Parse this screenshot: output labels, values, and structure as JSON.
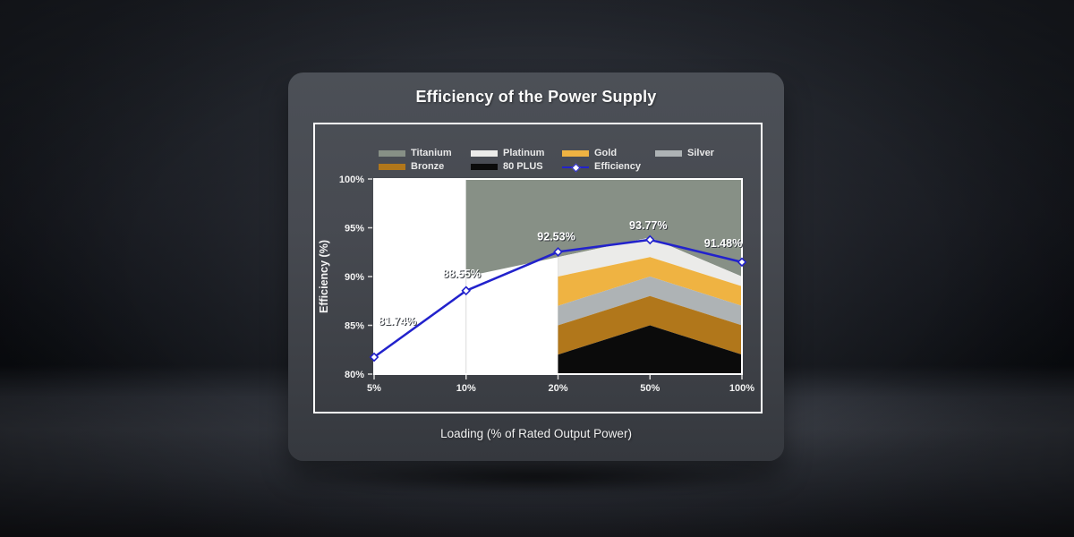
{
  "chart": {
    "title": "Efficiency of the Power Supply",
    "xlabel": "Loading (% of Rated Output Power)",
    "ylabel": "Efficiency (%)"
  },
  "chart_data": {
    "type": "area",
    "title": "Efficiency of the Power Supply",
    "xlabel": "Loading (% of Rated Output Power)",
    "ylabel": "Efficiency (%)",
    "x_categories": [
      "5%",
      "10%",
      "20%",
      "50%",
      "100%"
    ],
    "y_ticks": [
      80,
      85,
      90,
      95,
      100
    ],
    "y_tick_labels": [
      "80%",
      "85%",
      "90%",
      "95%",
      "100%"
    ],
    "y_range": [
      80,
      100
    ],
    "grid": "vertical-only",
    "plot_background": "#ffffff",
    "legend_position": "top-inside",
    "bands": [
      {
        "name": "Titanium",
        "color": "#879086",
        "x": [
          "10%",
          "20%",
          "50%",
          "100%"
        ],
        "lower": [
          90,
          92,
          94,
          90
        ],
        "upper": [
          100,
          100,
          100,
          100
        ]
      },
      {
        "name": "Platinum",
        "color": "#ebebe9",
        "x": [
          "20%",
          "50%",
          "100%"
        ],
        "lower": [
          90,
          92,
          89
        ],
        "upper": [
          92,
          94,
          90
        ]
      },
      {
        "name": "Gold",
        "color": "#efb342",
        "x": [
          "20%",
          "50%",
          "100%"
        ],
        "lower": [
          87,
          90,
          87
        ],
        "upper": [
          90,
          92,
          89
        ]
      },
      {
        "name": "Silver",
        "color": "#aeb3b5",
        "x": [
          "20%",
          "50%",
          "100%"
        ],
        "lower": [
          85,
          88,
          85
        ],
        "upper": [
          87,
          90,
          87
        ]
      },
      {
        "name": "Bronze",
        "color": "#b1771b",
        "x": [
          "20%",
          "50%",
          "100%"
        ],
        "lower": [
          82,
          85,
          82
        ],
        "upper": [
          85,
          88,
          85
        ]
      },
      {
        "name": "80 PLUS",
        "color": "#0b0b0b",
        "x": [
          "20%",
          "50%",
          "100%"
        ],
        "lower": [
          80,
          80,
          80
        ],
        "upper": [
          82,
          85,
          82
        ]
      }
    ],
    "line_series": {
      "name": "Efficiency",
      "color": "#2222cc",
      "marker": "diamond",
      "marker_fill": "#ffffff",
      "x": [
        "5%",
        "10%",
        "20%",
        "50%",
        "100%"
      ],
      "values": [
        81.74,
        88.55,
        92.53,
        93.77,
        91.48
      ],
      "point_labels": [
        "81.74%",
        "88.55%",
        "92.53%",
        "93.77%",
        "91.48%"
      ]
    },
    "legend": [
      {
        "label": "Titanium",
        "type": "swatch",
        "color": "#879086"
      },
      {
        "label": "Platinum",
        "type": "swatch",
        "color": "#ebebe9"
      },
      {
        "label": "Gold",
        "type": "swatch",
        "color": "#efb342"
      },
      {
        "label": "Silver",
        "type": "swatch",
        "color": "#aeb3b5"
      },
      {
        "label": "Bronze",
        "type": "swatch",
        "color": "#b1771b"
      },
      {
        "label": "80 PLUS",
        "type": "swatch",
        "color": "#0b0b0b"
      },
      {
        "label": "Efficiency",
        "type": "line",
        "color": "#2222cc"
      }
    ]
  }
}
